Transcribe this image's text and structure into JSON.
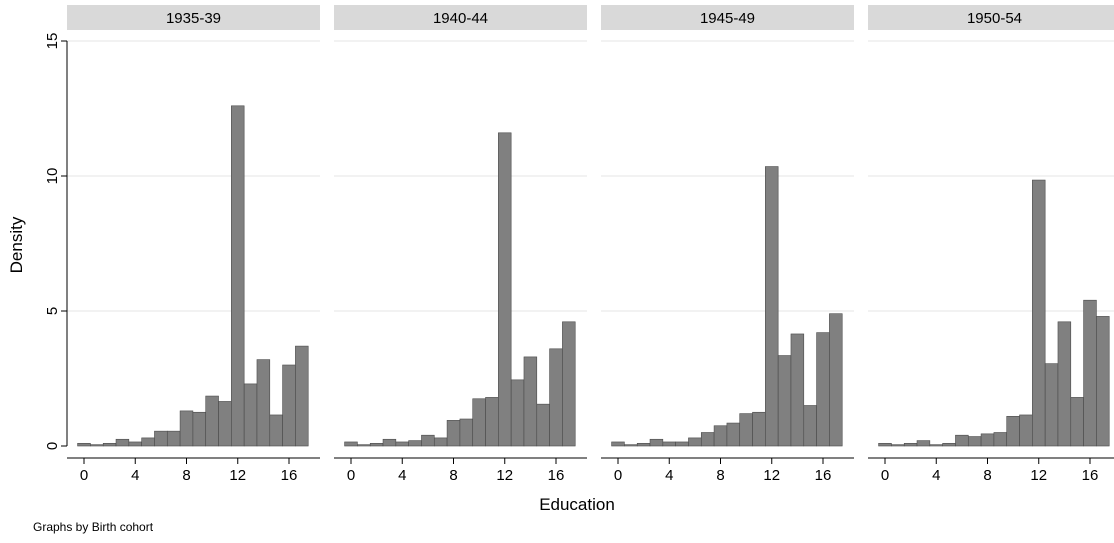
{
  "chart_data": {
    "type": "bar",
    "ylabel": "Density",
    "xlabel": "Education",
    "note": "Graphs by Birth cohort",
    "ylim": [
      0,
      15
    ],
    "yticks": [
      0,
      5,
      10,
      15
    ],
    "xlim": [
      -1,
      18
    ],
    "xticks": [
      0,
      4,
      8,
      12,
      16
    ],
    "grid": true,
    "bar_color": "#808080",
    "bins": [
      0,
      1,
      2,
      3,
      4,
      5,
      6,
      7,
      8,
      9,
      10,
      11,
      12,
      13,
      14,
      15,
      16,
      17
    ],
    "panels": [
      {
        "title": "1935-39",
        "values": [
          0.1,
          0.05,
          0.1,
          0.25,
          0.15,
          0.3,
          0.55,
          0.55,
          1.3,
          1.25,
          1.85,
          1.65,
          12.6,
          2.3,
          3.2,
          1.15,
          3.0,
          3.7
        ]
      },
      {
        "title": "1940-44",
        "values": [
          0.15,
          0.05,
          0.1,
          0.25,
          0.15,
          0.2,
          0.4,
          0.3,
          0.95,
          1.0,
          1.75,
          1.8,
          11.6,
          2.45,
          3.3,
          1.55,
          3.6,
          4.6
        ]
      },
      {
        "title": "1945-49",
        "values": [
          0.15,
          0.05,
          0.1,
          0.25,
          0.15,
          0.15,
          0.3,
          0.5,
          0.75,
          0.85,
          1.2,
          1.25,
          10.35,
          3.35,
          4.15,
          1.5,
          4.2,
          4.9
        ]
      },
      {
        "title": "1950-54",
        "values": [
          0.1,
          0.05,
          0.1,
          0.2,
          0.05,
          0.1,
          0.4,
          0.35,
          0.45,
          0.5,
          1.1,
          1.15,
          9.85,
          3.05,
          4.6,
          1.8,
          5.4,
          4.8
        ]
      }
    ]
  }
}
